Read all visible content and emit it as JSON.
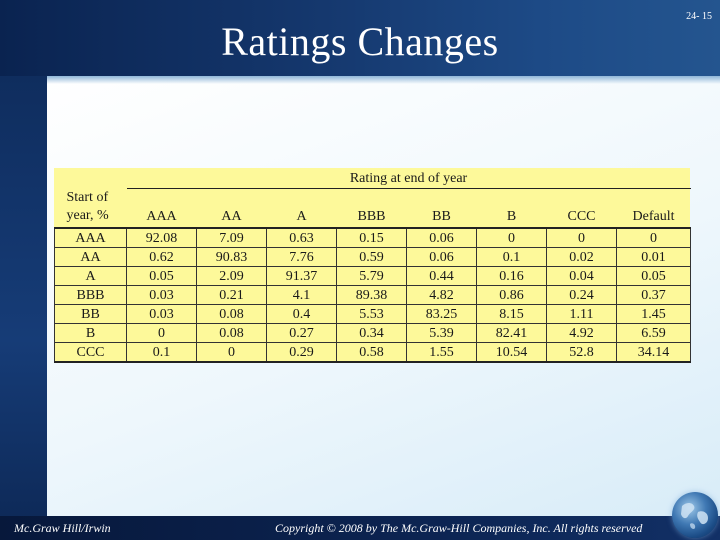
{
  "slide": {
    "title": "Ratings Changes",
    "page_number": "24- 15"
  },
  "footer": {
    "publisher": "Mc.Graw Hill/Irwin",
    "copyright": "Copyright © 2008 by The Mc.Graw-Hill Companies, Inc. All rights reserved"
  },
  "table": {
    "group_header": "Rating at end of year",
    "row_header_line1": "Start of",
    "row_header_line2": "year, %",
    "columns": [
      "AAA",
      "AA",
      "A",
      "BBB",
      "BB",
      "B",
      "CCC",
      "Default"
    ],
    "rows": [
      {
        "label": "AAA",
        "values": [
          "92.08",
          "7.09",
          "0.63",
          "0.15",
          "0.06",
          "0",
          "0",
          "0"
        ]
      },
      {
        "label": "AA",
        "values": [
          "0.62",
          "90.83",
          "7.76",
          "0.59",
          "0.06",
          "0.1",
          "0.02",
          "0.01"
        ]
      },
      {
        "label": "A",
        "values": [
          "0.05",
          "2.09",
          "91.37",
          "5.79",
          "0.44",
          "0.16",
          "0.04",
          "0.05"
        ]
      },
      {
        "label": "BBB",
        "values": [
          "0.03",
          "0.21",
          "4.1",
          "89.38",
          "4.82",
          "0.86",
          "0.24",
          "0.37"
        ]
      },
      {
        "label": "BB",
        "values": [
          "0.03",
          "0.08",
          "0.4",
          "5.53",
          "83.25",
          "8.15",
          "1.11",
          "1.45"
        ]
      },
      {
        "label": "B",
        "values": [
          "0",
          "0.08",
          "0.27",
          "0.34",
          "5.39",
          "82.41",
          "4.92",
          "6.59"
        ]
      },
      {
        "label": "CCC",
        "values": [
          "0.1",
          "0",
          "0.29",
          "0.58",
          "1.55",
          "10.54",
          "52.8",
          "34.14"
        ]
      }
    ]
  },
  "colors": {
    "table_background": "#fdf99a",
    "header_background": "#0a2350",
    "content_background": "#eef7fc"
  }
}
